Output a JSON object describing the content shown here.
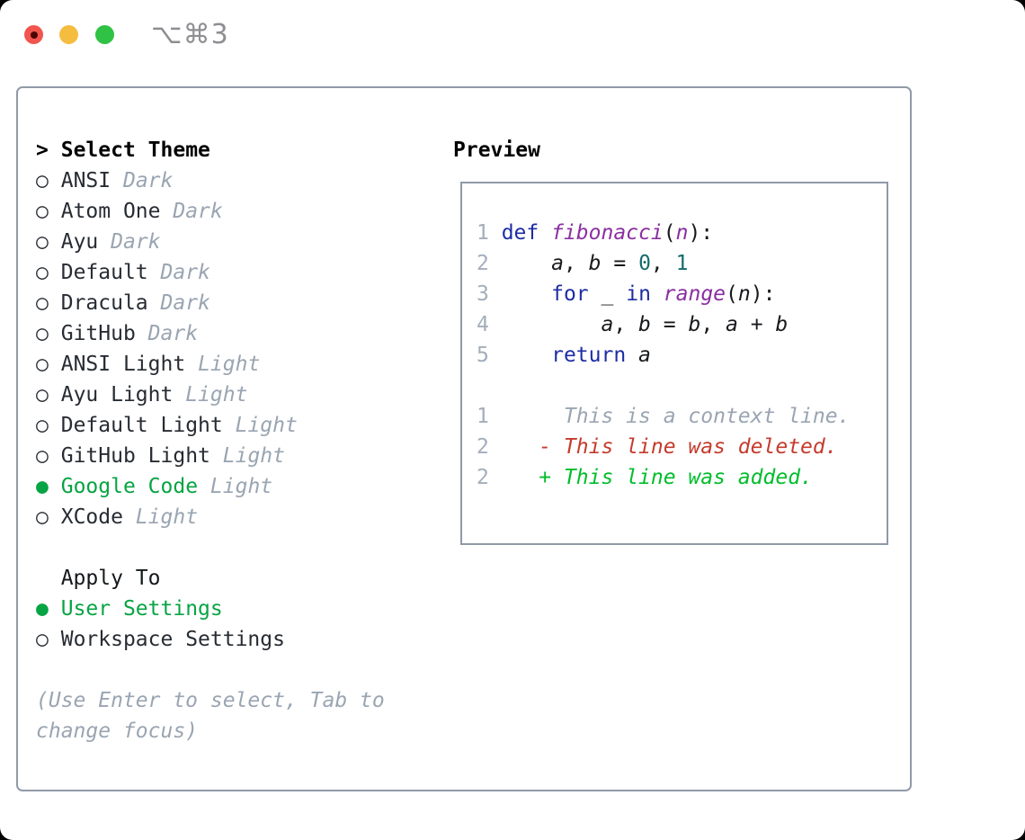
{
  "window": {
    "shortcut": "⌥⌘3"
  },
  "theme_list": {
    "header": {
      "marker": ">",
      "label": "Select Theme"
    },
    "items": [
      {
        "marker": "○",
        "name": "ANSI",
        "variant": "Dark",
        "selected": false
      },
      {
        "marker": "○",
        "name": "Atom One",
        "variant": "Dark",
        "selected": false
      },
      {
        "marker": "○",
        "name": "Ayu",
        "variant": "Dark",
        "selected": false
      },
      {
        "marker": "○",
        "name": "Default",
        "variant": "Dark",
        "selected": false
      },
      {
        "marker": "○",
        "name": "Dracula",
        "variant": "Dark",
        "selected": false
      },
      {
        "marker": "○",
        "name": "GitHub",
        "variant": "Dark",
        "selected": false
      },
      {
        "marker": "○",
        "name": "ANSI Light",
        "variant": "Light",
        "selected": false
      },
      {
        "marker": "○",
        "name": "Ayu Light",
        "variant": "Light",
        "selected": false
      },
      {
        "marker": "○",
        "name": "Default Light",
        "variant": "Light",
        "selected": false
      },
      {
        "marker": "○",
        "name": "GitHub Light",
        "variant": "Light",
        "selected": false
      },
      {
        "marker": "●",
        "name": "Google Code",
        "variant": "Light",
        "selected": true
      },
      {
        "marker": "○",
        "name": "XCode",
        "variant": "Light",
        "selected": false
      }
    ]
  },
  "apply_to": {
    "label": "Apply To",
    "options": [
      {
        "marker": "●",
        "label": "User Settings",
        "selected": true
      },
      {
        "marker": "○",
        "label": "Workspace Settings",
        "selected": false
      }
    ]
  },
  "hint": {
    "line1": "(Use Enter to select, Tab to",
    "line2": "change focus)"
  },
  "preview": {
    "label": "Preview",
    "lines": [
      {
        "num": "1",
        "segments": [
          {
            "t": "def ",
            "c": "kw"
          },
          {
            "t": "fibonacci",
            "c": "fn"
          },
          {
            "t": "(",
            "c": "pl"
          },
          {
            "t": "n",
            "c": "fn"
          },
          {
            "t": "):",
            "c": "pl"
          }
        ]
      },
      {
        "num": "2",
        "segments": [
          {
            "t": "    ",
            "c": "pl"
          },
          {
            "t": "a",
            "c": "var"
          },
          {
            "t": ", ",
            "c": "pl"
          },
          {
            "t": "b",
            "c": "var"
          },
          {
            "t": " = ",
            "c": "pl"
          },
          {
            "t": "0",
            "c": "num"
          },
          {
            "t": ", ",
            "c": "pl"
          },
          {
            "t": "1",
            "c": "num"
          }
        ]
      },
      {
        "num": "3",
        "segments": [
          {
            "t": "    ",
            "c": "pl"
          },
          {
            "t": "for",
            "c": "kw"
          },
          {
            "t": " ",
            "c": "pl"
          },
          {
            "t": "_",
            "c": "var"
          },
          {
            "t": " ",
            "c": "pl"
          },
          {
            "t": "in",
            "c": "kw"
          },
          {
            "t": " ",
            "c": "pl"
          },
          {
            "t": "range",
            "c": "fn"
          },
          {
            "t": "(",
            "c": "pl"
          },
          {
            "t": "n",
            "c": "var"
          },
          {
            "t": "):",
            "c": "pl"
          }
        ]
      },
      {
        "num": "4",
        "segments": [
          {
            "t": "        ",
            "c": "pl"
          },
          {
            "t": "a",
            "c": "var"
          },
          {
            "t": ", ",
            "c": "pl"
          },
          {
            "t": "b",
            "c": "var"
          },
          {
            "t": " = ",
            "c": "pl"
          },
          {
            "t": "b",
            "c": "var"
          },
          {
            "t": ", ",
            "c": "pl"
          },
          {
            "t": "a",
            "c": "var"
          },
          {
            "t": " + ",
            "c": "pl"
          },
          {
            "t": "b",
            "c": "var"
          }
        ]
      },
      {
        "num": "5",
        "segments": [
          {
            "t": "    ",
            "c": "pl"
          },
          {
            "t": "return",
            "c": "kw"
          },
          {
            "t": " ",
            "c": "pl"
          },
          {
            "t": "a",
            "c": "var"
          }
        ]
      },
      {
        "num": "",
        "segments": []
      },
      {
        "num": "1",
        "segments": [
          {
            "t": "     This is a context line.",
            "c": "ctx"
          }
        ]
      },
      {
        "num": "2",
        "segments": [
          {
            "t": "   - This line was deleted.",
            "c": "del"
          }
        ]
      },
      {
        "num": "2",
        "segments": [
          {
            "t": "   + This line was added.",
            "c": "add"
          }
        ]
      }
    ]
  },
  "colors": {
    "close_red": "#f1554e",
    "close_dot": "#4a0603",
    "minimize_yellow": "#f5bd40",
    "zoom_green": "#30c244",
    "shortcut_gray": "#8e8e93",
    "border_gray": "#8f9aa7",
    "muted_gray": "#9aa5b2",
    "line_number_gray": "#a3aebb",
    "selected_green": "#07a443",
    "diff_add": "#00bd2c",
    "diff_del": "#c53b2c",
    "keyword_blue": "#1e2da3",
    "function_purple": "#8b2fa0",
    "number_teal": "#146b6c"
  }
}
